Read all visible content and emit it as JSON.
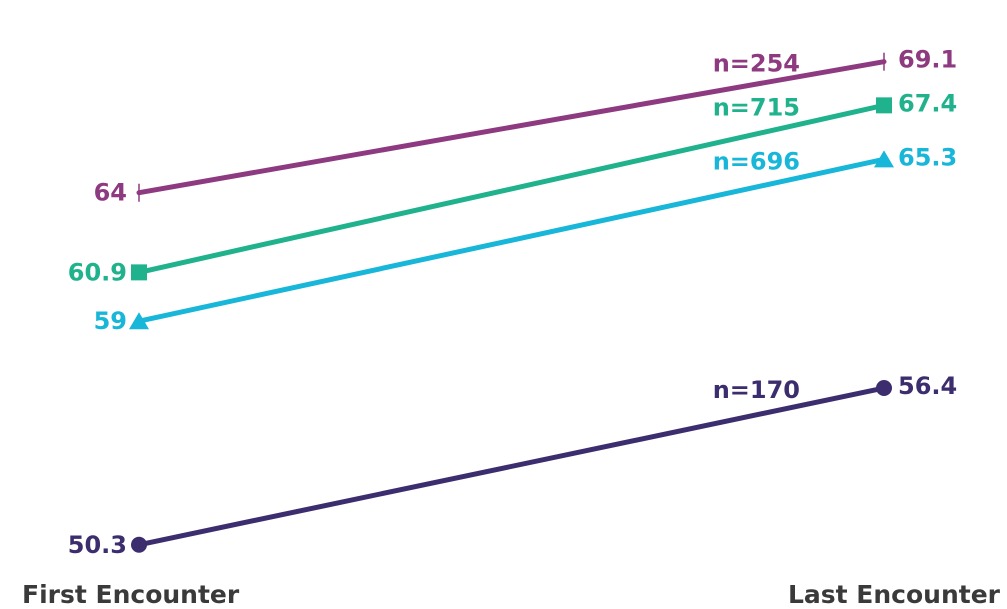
{
  "chart_data": {
    "type": "line",
    "categories": [
      "First Encounter",
      "Last Encounter"
    ],
    "series": [
      {
        "n_label": "n=254",
        "values": [
          64,
          69.1
        ],
        "value_labels": [
          "64",
          "69.1"
        ],
        "color": "#8e3a80",
        "marker": "tick"
      },
      {
        "n_label": "n=715",
        "values": [
          60.9,
          67.4
        ],
        "value_labels": [
          "60.9",
          "67.4"
        ],
        "color": "#1fb28d",
        "marker": "square"
      },
      {
        "n_label": "n=696",
        "values": [
          59,
          65.3
        ],
        "value_labels": [
          "59",
          "65.3"
        ],
        "color": "#18b6d8",
        "marker": "triangle"
      },
      {
        "n_label": "n=170",
        "values": [
          50.3,
          56.4
        ],
        "value_labels": [
          "50.3",
          "56.4"
        ],
        "color": "#3c2d6e",
        "marker": "circle"
      }
    ],
    "ylim": [
      47.8,
      71.5
    ],
    "grid": false,
    "legend": "none"
  }
}
